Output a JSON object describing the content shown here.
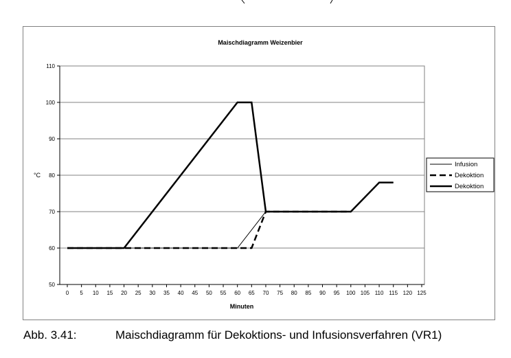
{
  "chart_data": {
    "type": "line",
    "title": "Maischdiagramm Weizenbier",
    "xlabel": "Minuten",
    "ylabel": "°C",
    "xlim": [
      0,
      125
    ],
    "ylim": [
      50,
      110
    ],
    "x_ticks": [
      "0",
      "5",
      "10",
      "15",
      "20",
      "25",
      "30",
      "35",
      "40",
      "45",
      "50",
      "55",
      "60",
      "65",
      "70",
      "75",
      "80",
      "85",
      "90",
      "95",
      "100",
      "105",
      "110",
      "115",
      "120",
      "125"
    ],
    "y_ticks": [
      "50",
      "60",
      "70",
      "80",
      "90",
      "100",
      "110"
    ],
    "grid": "horizontal",
    "legend_position": "right",
    "series": [
      {
        "name": "Infusion",
        "style": "thin-solid",
        "x": [
          0,
          20,
          60,
          70,
          100,
          110,
          115
        ],
        "y": [
          60,
          60,
          60,
          70,
          70,
          78,
          78
        ]
      },
      {
        "name": "Dekoktion",
        "style": "dashed",
        "x": [
          0,
          20,
          60,
          65,
          70,
          100
        ],
        "y": [
          60,
          60,
          60,
          60,
          70,
          70
        ]
      },
      {
        "name": "Dekoktion",
        "style": "thick-solid",
        "x": [
          0,
          20,
          60,
          65,
          70,
          100,
          110,
          115
        ],
        "y": [
          60,
          60,
          100,
          100,
          70,
          70,
          78,
          78
        ]
      }
    ]
  },
  "caption": {
    "label": "Abb. 3.41:",
    "text": "Maischdiagramm für Dekoktions- und Infusionsverfahren (VR1)"
  }
}
